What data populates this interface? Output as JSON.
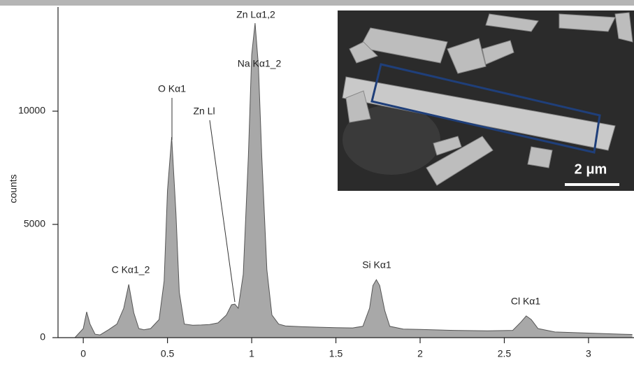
{
  "chart_data": {
    "type": "area",
    "y_label": "counts",
    "x": [
      -0.05,
      0.0,
      0.02,
      0.04,
      0.07,
      0.1,
      0.15,
      0.2,
      0.24,
      0.27,
      0.3,
      0.33,
      0.36,
      0.4,
      0.45,
      0.48,
      0.5,
      0.525,
      0.55,
      0.57,
      0.6,
      0.65,
      0.7,
      0.75,
      0.8,
      0.85,
      0.88,
      0.9,
      0.92,
      0.95,
      0.98,
      1.0,
      1.02,
      1.04,
      1.06,
      1.09,
      1.12,
      1.16,
      1.2,
      1.3,
      1.4,
      1.5,
      1.6,
      1.66,
      1.7,
      1.72,
      1.74,
      1.76,
      1.79,
      1.82,
      1.9,
      2.0,
      2.2,
      2.4,
      2.55,
      2.6,
      2.63,
      2.66,
      2.7,
      2.8,
      3.0,
      3.2,
      3.26
    ],
    "values": [
      0,
      400,
      1140,
      600,
      150,
      120,
      350,
      600,
      1300,
      2350,
      1100,
      400,
      350,
      400,
      800,
      2500,
      6500,
      8860,
      5500,
      2000,
      600,
      550,
      560,
      580,
      650,
      1000,
      1450,
      1480,
      1300,
      2800,
      8000,
      12500,
      13890,
      12000,
      8000,
      3000,
      1000,
      600,
      520,
      480,
      460,
      440,
      430,
      500,
      1300,
      2300,
      2560,
      2300,
      1200,
      500,
      380,
      360,
      320,
      300,
      320,
      700,
      960,
      800,
      400,
      250,
      200,
      150,
      140
    ],
    "color": "#a8a8a8",
    "xlim": [
      -0.15,
      3.27
    ],
    "ylim": [
      0,
      14600
    ],
    "xticks": [
      0,
      0.5,
      1,
      1.5,
      2,
      2.5,
      3
    ],
    "yticks": [
      0,
      5000,
      10000
    ],
    "annotations": [
      "Zn Lα1,2",
      "Na Kα1_2",
      "O Kα1",
      "Zn Ll",
      "C Kα1_2",
      "Si Kα1",
      "Cl Kα1"
    ]
  },
  "inset": {
    "scale_label": "2 μm"
  }
}
